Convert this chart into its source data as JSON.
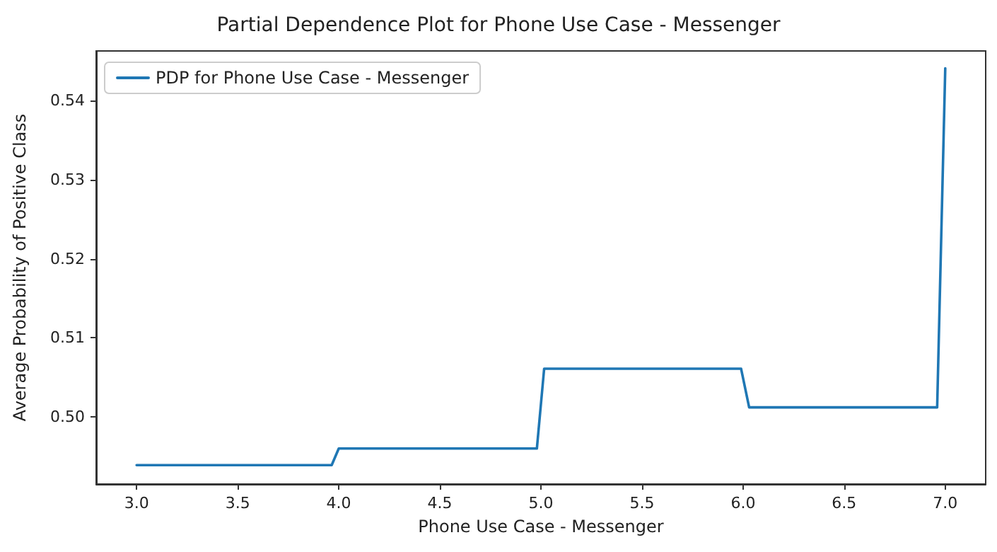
{
  "chart_data": {
    "type": "line",
    "title": "Partial Dependence Plot for Phone Use Case - Messenger",
    "xlabel": "Phone Use Case - Messenger",
    "ylabel": "Average Probability of Positive Class",
    "x": [
      3.0,
      3.965,
      4.0,
      4.98,
      5.016,
      5.99,
      6.03,
      6.96,
      7.0
    ],
    "series": [
      {
        "name": "PDP for Phone Use Case - Messenger",
        "color": "#1f77b4",
        "values": [
          0.4939,
          0.4939,
          0.496,
          0.496,
          0.5061,
          0.5061,
          0.5012,
          0.5012,
          0.5441
        ]
      }
    ],
    "xlim": [
      2.8,
      7.2
    ],
    "xticks": [
      {
        "value": 3,
        "label": "3.0"
      },
      3.5,
      {
        "value": 4,
        "label": "4.0"
      },
      4.5,
      {
        "value": 5,
        "label": "5.0"
      },
      5.5,
      {
        "value": 6,
        "label": "6.0"
      },
      6.5,
      {
        "value": 7,
        "label": "7.0"
      }
    ],
    "ylim": [
      0.4915,
      0.5463
    ],
    "yticks": [
      {
        "value": 0.5,
        "label": "0.50"
      },
      0.51,
      0.52,
      0.53,
      0.54
    ],
    "legend": "top left",
    "grid": false,
    "marker": "none",
    "line_style": "solid"
  }
}
